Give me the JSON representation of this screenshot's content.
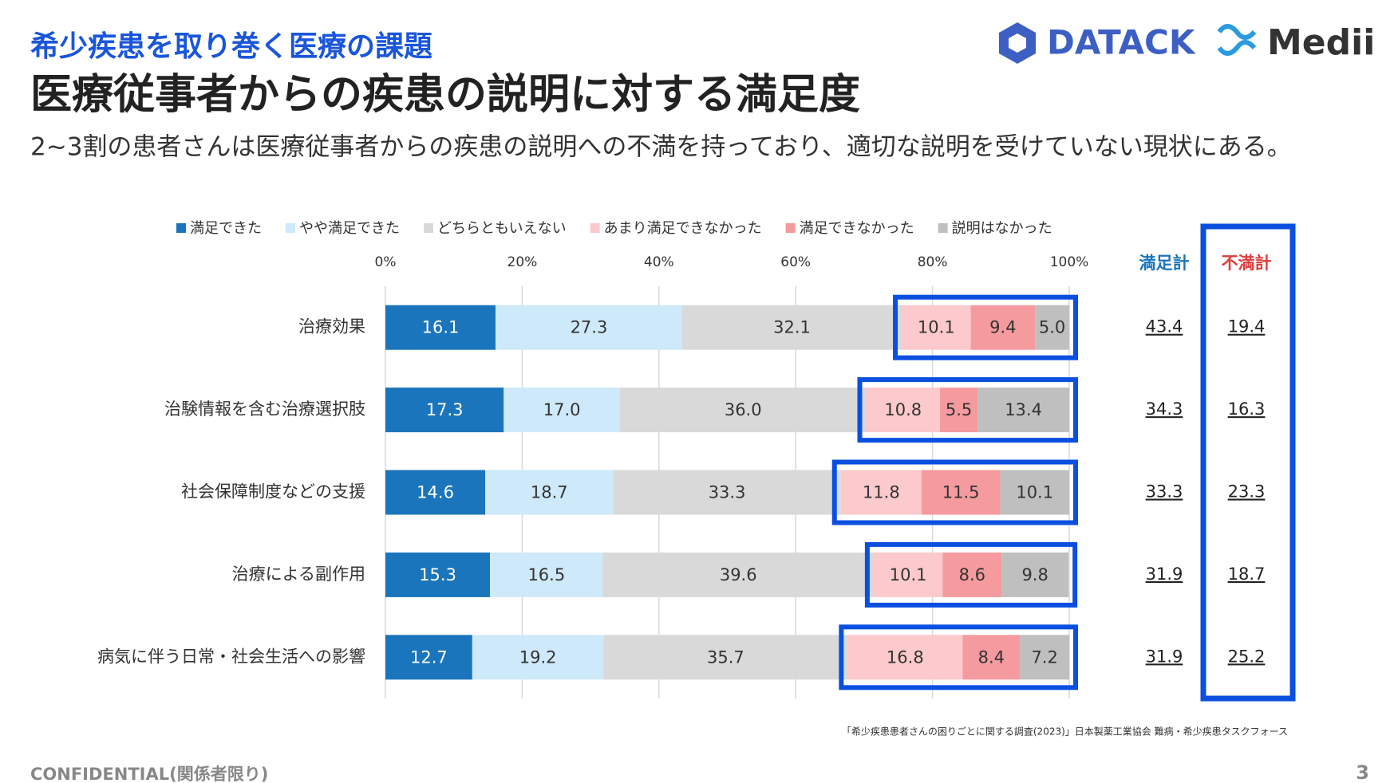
{
  "header": {
    "kicker": "希少疾患を取り巻く医療の課題",
    "title": "医療従事者からの疾患の説明に対する満足度",
    "description": "2~3割の患者さんは医療従事者からの疾患の説明への不満を持っており、適切な説明を受けていない現状にある。",
    "logos": [
      "DATACK",
      "Medii"
    ]
  },
  "chart_data": {
    "type": "stacked-bar-horizontal",
    "categories": [
      "治療効果",
      "治験情報を含む治療選択肢",
      "社会保障制度などの支援",
      "治療による副作用",
      "病気に伴う日常・社会生活への影響"
    ],
    "series": [
      {
        "name": "満足できた",
        "color": "#1a75bc",
        "values": [
          16.1,
          17.3,
          14.6,
          15.3,
          12.7
        ]
      },
      {
        "name": "やや満足できた",
        "color": "#cde9fa",
        "values": [
          27.3,
          17.0,
          18.7,
          16.5,
          19.2
        ],
        "value_labels": [
          "27.3",
          "17.0",
          "18.7",
          "16.5",
          "19.2"
        ]
      },
      {
        "name": "どちらともいえない",
        "color": "#d9d9d9",
        "values": [
          32.1,
          36.0,
          33.3,
          39.6,
          35.7
        ],
        "value_labels": [
          "32.1",
          "36.0",
          "33.3",
          "39.6",
          "35.7"
        ]
      },
      {
        "name": "あまり満足できなかった",
        "color": "#fcc9cc",
        "values": [
          10.1,
          10.8,
          11.8,
          10.1,
          16.8
        ]
      },
      {
        "name": "満足できなかった",
        "color": "#f59a9e",
        "values": [
          9.4,
          5.5,
          11.5,
          8.6,
          8.4
        ]
      },
      {
        "name": "説明はなかった",
        "color": "#bfbfbf",
        "values": [
          5.0,
          13.4,
          10.1,
          9.8,
          7.2
        ],
        "value_labels": [
          "5.0",
          "13.4",
          "10.1",
          "9.8",
          "7.2"
        ]
      }
    ],
    "xlim": [
      0,
      100
    ],
    "xticks": [
      {
        "value": 0,
        "label": "0%"
      },
      {
        "value": 20,
        "label": "20%"
      },
      {
        "value": 40,
        "label": "40%"
      },
      {
        "value": 60,
        "label": "60%"
      },
      {
        "value": 80,
        "label": "80%"
      },
      {
        "value": 100,
        "label": "100%"
      }
    ],
    "grid": true,
    "legend": "top"
  },
  "totals": {
    "satisfied": {
      "label": "満足計",
      "values": [
        43.4,
        34.3,
        33.3,
        31.9,
        31.9
      ]
    },
    "dissatisfied": {
      "label": "不満計",
      "values": [
        19.4,
        16.3,
        23.3,
        18.7,
        25.2
      ]
    }
  },
  "footer": {
    "source": "「希少疾患患者さんの困りごとに関する調査(2023)」日本製薬工業協会 難病・希少疾患タスクフォース",
    "confidential": "CONFIDENTIAL(関係者限り)",
    "page": "3"
  }
}
